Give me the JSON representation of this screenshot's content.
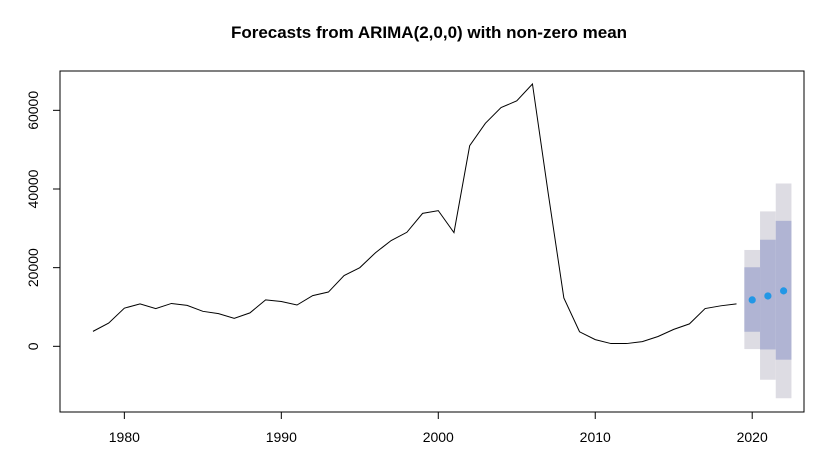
{
  "chart_data": {
    "type": "line",
    "title": "Forecasts from ARIMA(2,0,0) with non-zero mean",
    "xlabel": "",
    "ylabel": "",
    "xlim": [
      1975.9,
      2023.3
    ],
    "ylim": [
      -16700,
      70000
    ],
    "xticks": [
      1980,
      1990,
      2000,
      2010,
      2020
    ],
    "yticks": [
      0,
      20000,
      40000,
      60000
    ],
    "grid": false,
    "legend": "none",
    "colors": {
      "history": "#000000",
      "forecast_point": "#2297e6",
      "band_80": "#b0b4d3",
      "band_95": "#dddce3"
    },
    "series": [
      {
        "type": "line",
        "x": [
          1978,
          1979,
          1980,
          1981,
          1982,
          1983,
          1984,
          1985,
          1986,
          1987,
          1988,
          1989,
          1990,
          1991,
          1992,
          1993,
          1994,
          1995,
          1996,
          1997,
          1998,
          1999,
          2000,
          2001,
          2002,
          2003,
          2004,
          2005,
          2006,
          2007,
          2008,
          2009,
          2010,
          2011,
          2012,
          2013,
          2014,
          2015,
          2016,
          2017,
          2018,
          2019
        ],
        "values": [
          3800,
          5900,
          9700,
          10800,
          9600,
          10900,
          10400,
          8900,
          8300,
          7100,
          8500,
          11800,
          11400,
          10500,
          12900,
          13800,
          18000,
          20000,
          23800,
          26900,
          29000,
          33800,
          34500,
          28900,
          51000,
          56700,
          60700,
          62400,
          66700,
          39000,
          12300,
          3700,
          1700,
          700,
          700,
          1200,
          2500,
          4300,
          5700,
          9600,
          10300,
          10800
        ]
      },
      {
        "type": "forecast",
        "x": [
          2020,
          2021,
          2022
        ],
        "values": [
          11800,
          12800,
          14100
        ],
        "lo80": [
          3700,
          -800,
          -3400
        ],
        "hi80": [
          20100,
          27100,
          31900
        ],
        "lo95": [
          -700,
          -8500,
          -13200
        ],
        "hi95": [
          24500,
          34300,
          41400
        ]
      }
    ]
  }
}
